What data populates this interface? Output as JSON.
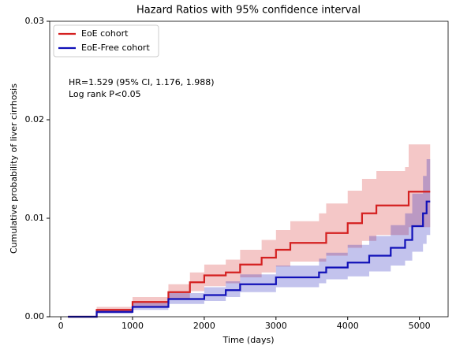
{
  "chart_data": {
    "type": "step",
    "title": "Hazard Ratios with 95% confidence interval",
    "xlabel": "Time (days)",
    "ylabel": "Cumulative probability of liver cirrhosis",
    "annotations": [
      "HR=1.529 (95% CI, 1.176, 1.988)",
      "Log rank P<0.05"
    ],
    "legend": "upper left",
    "grid": false,
    "xlim": [
      -155,
      5400
    ],
    "ylim": [
      0,
      0.03
    ],
    "xticks": [
      0,
      1000,
      2000,
      3000,
      4000,
      5000
    ],
    "yticks": [
      {
        "value": 0,
        "label": "0.00"
      },
      {
        "value": 0.01,
        "label": "0.01"
      },
      {
        "value": 0.02,
        "label": "0.02"
      },
      {
        "value": 0.03,
        "label": "0.03"
      }
    ],
    "series": [
      {
        "name": "EoE cohort",
        "color": "#d42020",
        "x": [
          100,
          500,
          1000,
          1500,
          1800,
          2000,
          2300,
          2500,
          2800,
          3000,
          3200,
          3600,
          3700,
          4000,
          4200,
          4400,
          4800,
          4850,
          5150
        ],
        "values": [
          0,
          0.0007,
          0.0015,
          0.0025,
          0.0035,
          0.0042,
          0.0045,
          0.0053,
          0.006,
          0.0068,
          0.0075,
          0.0075,
          0.0085,
          0.0095,
          0.0105,
          0.0113,
          0.0113,
          0.0127,
          0.0127
        ],
        "upper": [
          0,
          0.001,
          0.002,
          0.0033,
          0.0045,
          0.0053,
          0.0058,
          0.0068,
          0.0078,
          0.0088,
          0.0097,
          0.0105,
          0.0115,
          0.0128,
          0.014,
          0.0148,
          0.0152,
          0.0175,
          0.0175
        ],
        "lower": [
          0,
          0.0004,
          0.001,
          0.0018,
          0.0026,
          0.0031,
          0.0034,
          0.004,
          0.0045,
          0.0051,
          0.0056,
          0.0056,
          0.0062,
          0.007,
          0.0077,
          0.0083,
          0.0083,
          0.0091,
          0.0091
        ]
      },
      {
        "name": "EoE-Free cohort",
        "color": "#1010b8",
        "x": [
          100,
          500,
          1000,
          1500,
          2000,
          2300,
          2500,
          3000,
          3600,
          3700,
          4000,
          4300,
          4600,
          4800,
          4900,
          5050,
          5100,
          5150
        ],
        "values": [
          0,
          0.0005,
          0.001,
          0.0018,
          0.0022,
          0.0027,
          0.0033,
          0.004,
          0.0045,
          0.005,
          0.0055,
          0.0062,
          0.007,
          0.0078,
          0.0092,
          0.0105,
          0.0117,
          0.0117
        ],
        "upper": [
          0,
          0.0007,
          0.0014,
          0.0024,
          0.003,
          0.0036,
          0.0043,
          0.0052,
          0.0059,
          0.0065,
          0.0073,
          0.0082,
          0.0093,
          0.0105,
          0.0125,
          0.0143,
          0.016,
          0.016
        ],
        "lower": [
          0,
          0.0003,
          0.0007,
          0.0013,
          0.0016,
          0.002,
          0.0025,
          0.003,
          0.0034,
          0.0038,
          0.0041,
          0.0046,
          0.0052,
          0.0057,
          0.0066,
          0.0074,
          0.0083,
          0.0083
        ]
      }
    ]
  }
}
